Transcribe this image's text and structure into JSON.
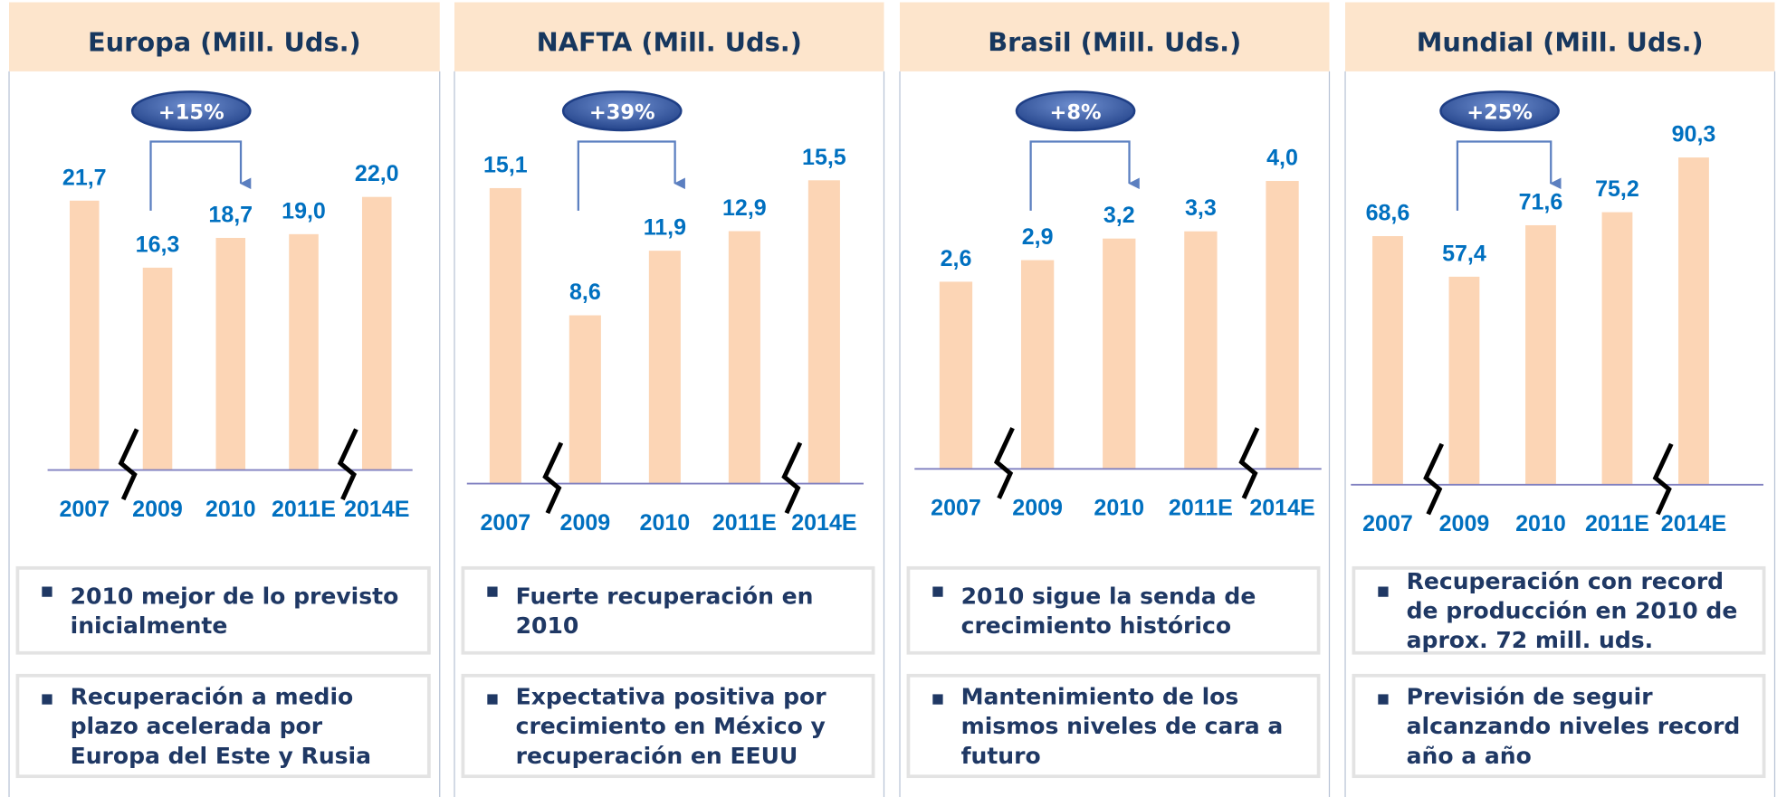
{
  "chart_data": [
    {
      "type": "bar",
      "title": "Europa (Mill. Uds.)",
      "categories": [
        "2007",
        "2009",
        "2010",
        "2011E",
        "2014E"
      ],
      "values": [
        21.7,
        16.3,
        18.7,
        19.0,
        22.0
      ],
      "value_labels": [
        "21,7",
        "16,3",
        "18,7",
        "19,0",
        "22,0"
      ],
      "color": "#fcd5b5",
      "ylim": [
        0,
        25
      ],
      "annotation": "+15%",
      "notes": [
        "2010 mejor de lo previsto inicialmente",
        "Recuperación a medio plazo acelerada por Europa del Este y Rusia"
      ]
    },
    {
      "type": "bar",
      "title": "NAFTA (Mill. Uds.)",
      "categories": [
        "2007",
        "2009",
        "2010",
        "2011E",
        "2014E"
      ],
      "values": [
        15.1,
        8.6,
        11.9,
        12.9,
        15.5
      ],
      "value_labels": [
        "15,1",
        "8,6",
        "11,9",
        "12,9",
        "15,5"
      ],
      "color": "#fcd5b5",
      "ylim": [
        0,
        18
      ],
      "annotation": "+39%",
      "notes": [
        "Fuerte recuperación en 2010",
        "Expectativa positiva por crecimiento en México y recuperación en EEUU"
      ]
    },
    {
      "type": "bar",
      "title": "Brasil (Mill. Uds.)",
      "categories": [
        "2007",
        "2009",
        "2010",
        "2011E",
        "2014E"
      ],
      "values": [
        2.6,
        2.9,
        3.2,
        3.3,
        4.0
      ],
      "value_labels": [
        "2,6",
        "2,9",
        "3,2",
        "3,3",
        "4,0"
      ],
      "color": "#fcd5b5",
      "ylim": [
        0,
        4.5
      ],
      "annotation": "+8%",
      "notes": [
        "2010 sigue la senda de crecimiento histórico",
        "Mantenimiento de los mismos niveles de cara a futuro"
      ]
    },
    {
      "type": "bar",
      "title": "Mundial (Mill. Uds.)",
      "categories": [
        "2007",
        "2009",
        "2010",
        "2011E",
        "2014E"
      ],
      "values": [
        68.6,
        57.4,
        71.6,
        75.2,
        90.3
      ],
      "value_labels": [
        "68,6",
        "57,4",
        "71,6",
        "75,2",
        "90,3"
      ],
      "color": "#fcd5b5",
      "ylim": [
        0,
        100
      ],
      "annotation": "+25%",
      "notes": [
        "Recuperación con record de producción en 2010 de aprox. 72 mill. uds.",
        "Previsión de seguir alcanzando niveles record año a año"
      ]
    }
  ]
}
